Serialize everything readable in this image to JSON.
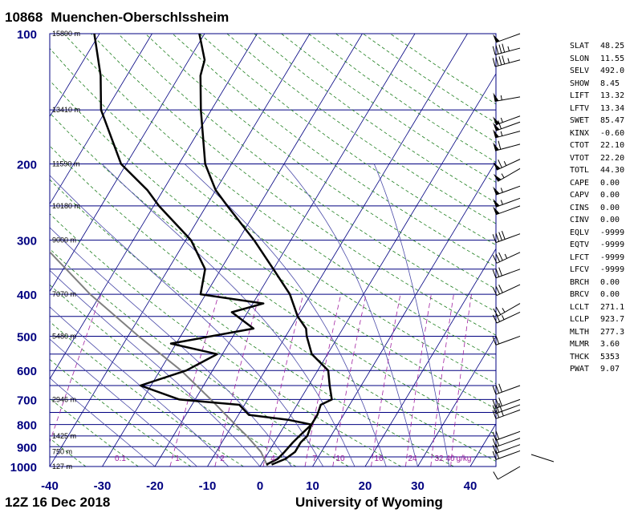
{
  "station": {
    "id": "10868",
    "name": "Muenchen-Oberschlssheim"
  },
  "footer": {
    "time": "12Z 16 Dec 2018",
    "source": "University of Wyoming"
  },
  "colors": {
    "frame": "#000080",
    "isobar": "#000080",
    "isotherm": "#000080",
    "dry_adiabat": "#1f7f1f",
    "moist_adiabat": "#4a4aa8",
    "mixing_ratio": "#a020a0",
    "sounding": "#000000",
    "parcel": "#808080"
  },
  "chart_data": {
    "type": "skew-t",
    "title": "10868 Muenchen-Oberschlssheim",
    "xlabel": "",
    "ylabel": "",
    "x_ticks": [
      -40,
      -30,
      -20,
      -10,
      0,
      10,
      20,
      30,
      40
    ],
    "xlim": [
      -40,
      45
    ],
    "pressure_labels": [
      100,
      200,
      300,
      400,
      500,
      600,
      700,
      800,
      900,
      1000
    ],
    "ylim": [
      1000,
      100
    ],
    "height_labels": [
      {
        "p": 100,
        "text": "15890 m"
      },
      {
        "p": 150,
        "text": "13410 m"
      },
      {
        "p": 200,
        "text": "11590 m"
      },
      {
        "p": 250,
        "text": "10180 m"
      },
      {
        "p": 300,
        "text": "9000 m"
      },
      {
        "p": 400,
        "text": "7070 m"
      },
      {
        "p": 500,
        "text": "5480 m"
      },
      {
        "p": 700,
        "text": "2946 m"
      },
      {
        "p": 850,
        "text": "1425 m"
      },
      {
        "p": 925,
        "text": "750 m"
      },
      {
        "p": 1000,
        "text": "127 m"
      }
    ],
    "mixing_ratio_labels": [
      "0.1",
      "1",
      "2",
      "4",
      "7",
      "10",
      "16",
      "24",
      "32",
      "40",
      "g/kg"
    ],
    "temperature": [
      {
        "p": 990,
        "t": 2
      },
      {
        "p": 960,
        "t": 4
      },
      {
        "p": 925,
        "t": 5
      },
      {
        "p": 880,
        "t": 5
      },
      {
        "p": 850,
        "t": 5.5
      },
      {
        "p": 800,
        "t": 5
      },
      {
        "p": 760,
        "t": 5
      },
      {
        "p": 720,
        "t": 4.5
      },
      {
        "p": 700,
        "t": 6
      },
      {
        "p": 650,
        "t": 4
      },
      {
        "p": 600,
        "t": 2
      },
      {
        "p": 550,
        "t": -3
      },
      {
        "p": 500,
        "t": -6
      },
      {
        "p": 480,
        "t": -7
      },
      {
        "p": 450,
        "t": -10
      },
      {
        "p": 400,
        "t": -14
      },
      {
        "p": 350,
        "t": -20
      },
      {
        "p": 300,
        "t": -27
      },
      {
        "p": 250,
        "t": -36
      },
      {
        "p": 230,
        "t": -40
      },
      {
        "p": 200,
        "t": -45
      },
      {
        "p": 150,
        "t": -52
      },
      {
        "p": 125,
        "t": -56
      },
      {
        "p": 115,
        "t": -57
      },
      {
        "p": 100,
        "t": -61
      }
    ],
    "dewpoint": [
      {
        "p": 990,
        "t": 1
      },
      {
        "p": 960,
        "t": 2.5
      },
      {
        "p": 925,
        "t": 3
      },
      {
        "p": 880,
        "t": 3.5
      },
      {
        "p": 850,
        "t": 4
      },
      {
        "p": 800,
        "t": 5
      },
      {
        "p": 780,
        "t": 0
      },
      {
        "p": 760,
        "t": -8
      },
      {
        "p": 720,
        "t": -11
      },
      {
        "p": 700,
        "t": -23
      },
      {
        "p": 650,
        "t": -32
      },
      {
        "p": 600,
        "t": -25
      },
      {
        "p": 550,
        "t": -21
      },
      {
        "p": 520,
        "t": -31
      },
      {
        "p": 480,
        "t": -17
      },
      {
        "p": 440,
        "t": -23
      },
      {
        "p": 420,
        "t": -18
      },
      {
        "p": 400,
        "t": -31
      },
      {
        "p": 350,
        "t": -33
      },
      {
        "p": 300,
        "t": -39
      },
      {
        "p": 250,
        "t": -49
      },
      {
        "p": 230,
        "t": -53
      },
      {
        "p": 200,
        "t": -61
      },
      {
        "p": 150,
        "t": -71
      },
      {
        "p": 125,
        "t": -75
      },
      {
        "p": 100,
        "t": -81
      }
    ],
    "parcel": [
      {
        "p": 1000,
        "t": 1.5
      },
      {
        "p": 925,
        "t": -1.5
      },
      {
        "p": 850,
        "t": -6
      },
      {
        "p": 800,
        "t": -9.5
      },
      {
        "p": 700,
        "t": -17
      },
      {
        "p": 600,
        "t": -26
      },
      {
        "p": 500,
        "t": -38
      },
      {
        "p": 400,
        "t": -52
      },
      {
        "p": 300,
        "t": -68
      },
      {
        "p": 200,
        "t": -85
      },
      {
        "p": 130,
        "t": -100
      }
    ],
    "wind_barbs": [
      {
        "p": 100,
        "dir": 250,
        "spd": 50
      },
      {
        "p": 108,
        "dir": 255,
        "spd": 45
      },
      {
        "p": 115,
        "dir": 255,
        "spd": 45
      },
      {
        "p": 140,
        "dir": 260,
        "spd": 55
      },
      {
        "p": 155,
        "dir": 250,
        "spd": 55
      },
      {
        "p": 160,
        "dir": 250,
        "spd": 60
      },
      {
        "p": 168,
        "dir": 255,
        "spd": 55
      },
      {
        "p": 180,
        "dir": 255,
        "spd": 60
      },
      {
        "p": 195,
        "dir": 245,
        "spd": 65
      },
      {
        "p": 205,
        "dir": 240,
        "spd": 55
      },
      {
        "p": 225,
        "dir": 250,
        "spd": 55
      },
      {
        "p": 240,
        "dir": 250,
        "spd": 55
      },
      {
        "p": 250,
        "dir": 250,
        "spd": 50
      },
      {
        "p": 290,
        "dir": 250,
        "spd": 40
      },
      {
        "p": 320,
        "dir": 245,
        "spd": 35
      },
      {
        "p": 350,
        "dir": 250,
        "spd": 30
      },
      {
        "p": 380,
        "dir": 245,
        "spd": 30
      },
      {
        "p": 420,
        "dir": 240,
        "spd": 25
      },
      {
        "p": 440,
        "dir": 245,
        "spd": 25
      },
      {
        "p": 500,
        "dir": 250,
        "spd": 20
      },
      {
        "p": 650,
        "dir": 250,
        "spd": 30
      },
      {
        "p": 700,
        "dir": 250,
        "spd": 30
      },
      {
        "p": 720,
        "dir": 250,
        "spd": 30
      },
      {
        "p": 740,
        "dir": 250,
        "spd": 25
      },
      {
        "p": 830,
        "dir": 250,
        "spd": 20
      },
      {
        "p": 860,
        "dir": 250,
        "spd": 20
      },
      {
        "p": 890,
        "dir": 250,
        "spd": 20
      },
      {
        "p": 920,
        "dir": 250,
        "spd": 20
      },
      {
        "p": 1000,
        "dir": 240,
        "spd": 10
      }
    ],
    "indices": [
      {
        "name": "SLAT",
        "value": "48.25"
      },
      {
        "name": "SLON",
        "value": "11.55"
      },
      {
        "name": "SELV",
        "value": "492.0"
      },
      {
        "name": "SHOW",
        "value": "8.45"
      },
      {
        "name": "LIFT",
        "value": "13.32"
      },
      {
        "name": "LFTV",
        "value": "13.34"
      },
      {
        "name": "SWET",
        "value": "85.47"
      },
      {
        "name": "KINX",
        "value": "-0.60"
      },
      {
        "name": "CTOT",
        "value": "22.10"
      },
      {
        "name": "VTOT",
        "value": "22.20"
      },
      {
        "name": "TOTL",
        "value": "44.30"
      },
      {
        "name": "CAPE",
        "value": "0.00"
      },
      {
        "name": "CAPV",
        "value": "0.00"
      },
      {
        "name": "CINS",
        "value": "0.00"
      },
      {
        "name": "CINV",
        "value": "0.00"
      },
      {
        "name": "EQLV",
        "value": "-9999"
      },
      {
        "name": "EQTV",
        "value": "-9999"
      },
      {
        "name": "LFCT",
        "value": "-9999"
      },
      {
        "name": "LFCV",
        "value": "-9999"
      },
      {
        "name": "BRCH",
        "value": "0.00"
      },
      {
        "name": "BRCV",
        "value": "0.00"
      },
      {
        "name": "LCLT",
        "value": "271.1"
      },
      {
        "name": "LCLP",
        "value": "923.7"
      },
      {
        "name": "MLTH",
        "value": "277.3"
      },
      {
        "name": "MLMR",
        "value": "3.60"
      },
      {
        "name": "THCK",
        "value": "5353"
      },
      {
        "name": "PWAT",
        "value": "9.07"
      }
    ]
  }
}
